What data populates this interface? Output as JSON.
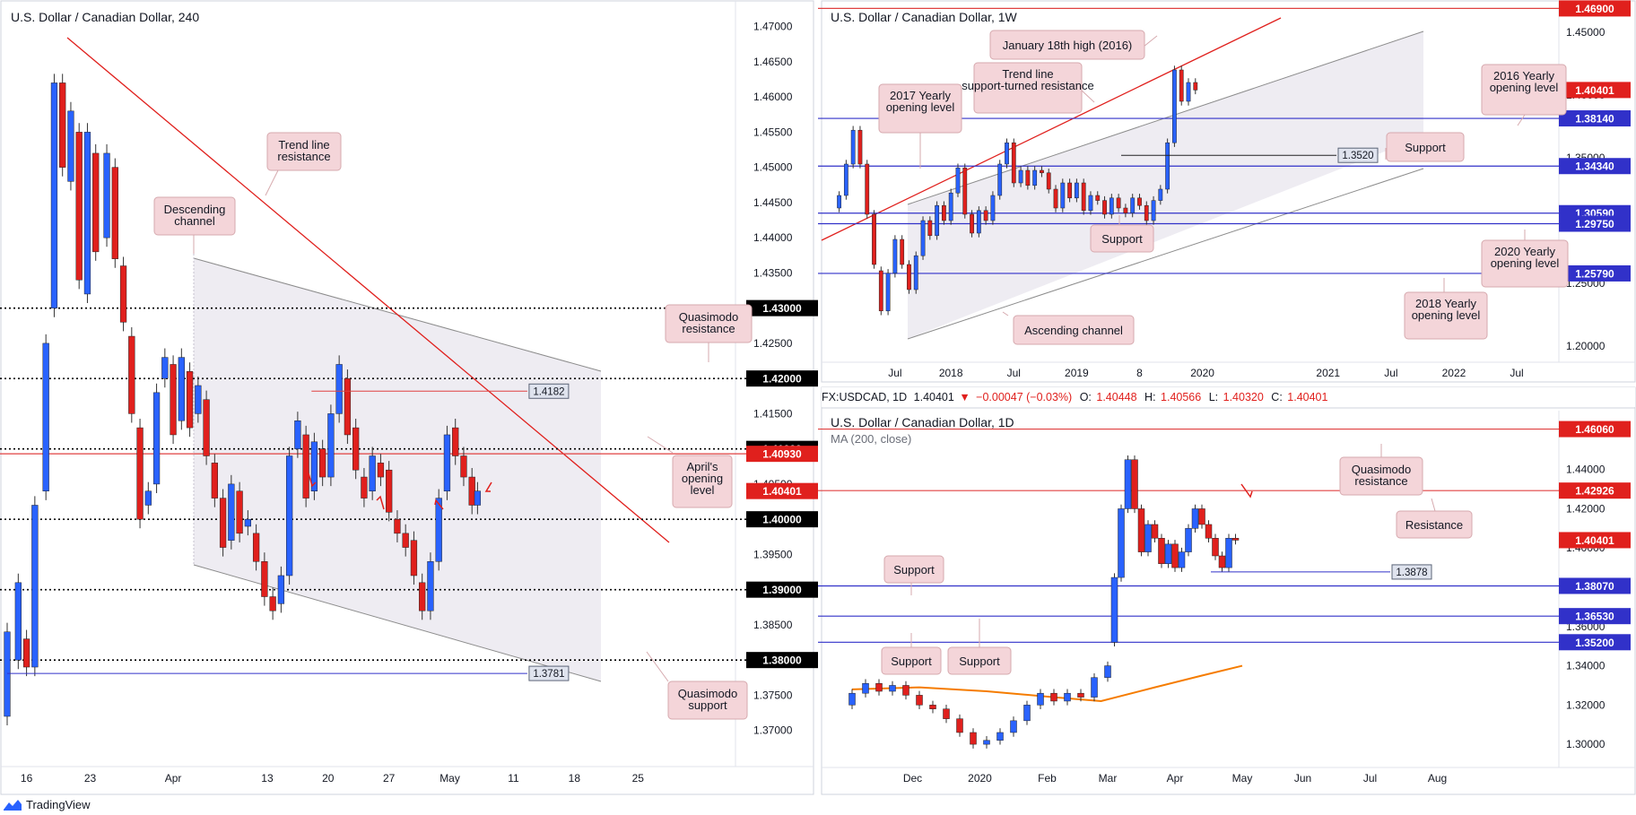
{
  "branding": {
    "name": "TradingView"
  },
  "colors": {
    "bull": "#2962ff",
    "bear": "#e0201d",
    "support": "#3131c9",
    "resistance": "#e04040",
    "ma": "#f57c00",
    "channel": "#8c8c8c",
    "label_red_bg": "#e0201d",
    "label_blue_bg": "#3131c9",
    "callout_bg": "#f4d5d9",
    "callout_border": "#d6a9ae"
  },
  "chart_data": [
    {
      "id": "h4",
      "type": "candlestick",
      "title": "U.S. Dollar / Canadian Dollar, 240",
      "ylim": [
        1.3655,
        1.4725
      ],
      "yticks": [
        "1.47000",
        "1.46500",
        "1.46000",
        "1.45500",
        "1.45000",
        "1.44500",
        "1.44000",
        "1.43500",
        "1.43000",
        "1.42500",
        "1.42000",
        "1.41500",
        "1.41000",
        "1.40500",
        "1.40000",
        "1.39500",
        "1.39000",
        "1.38500",
        "1.38000",
        "1.37500",
        "1.37000"
      ],
      "xlim": [
        0,
        260
      ],
      "xticks": [
        {
          "label": "16",
          "x": 7
        },
        {
          "label": "23",
          "x": 30
        },
        {
          "label": "Apr",
          "x": 60
        },
        {
          "label": "13",
          "x": 94
        },
        {
          "label": "20",
          "x": 116
        },
        {
          "label": "27",
          "x": 138
        },
        {
          "label": "May",
          "x": 160
        },
        {
          "label": "11",
          "x": 183
        },
        {
          "label": "18",
          "x": 205
        },
        {
          "label": "25",
          "x": 228
        }
      ],
      "ohlc_points": [
        [
          0,
          1.372,
          1.384
        ],
        [
          4,
          1.38,
          1.391
        ],
        [
          7,
          1.383,
          1.379
        ],
        [
          10,
          1.379,
          1.402
        ],
        [
          14,
          1.404,
          1.425
        ],
        [
          17,
          1.43,
          1.462
        ],
        [
          20,
          1.462,
          1.45
        ],
        [
          23,
          1.448,
          1.458
        ],
        [
          26,
          1.455,
          1.434
        ],
        [
          29,
          1.432,
          1.455
        ],
        [
          32,
          1.452,
          1.438
        ],
        [
          36,
          1.44,
          1.452
        ],
        [
          39,
          1.45,
          1.437
        ],
        [
          42,
          1.436,
          1.428
        ],
        [
          45,
          1.426,
          1.415
        ],
        [
          48,
          1.413,
          1.4
        ],
        [
          51,
          1.402,
          1.404
        ],
        [
          54,
          1.405,
          1.418
        ],
        [
          57,
          1.42,
          1.423
        ],
        [
          60,
          1.422,
          1.412
        ],
        [
          63,
          1.414,
          1.423
        ],
        [
          66,
          1.421,
          1.413
        ],
        [
          69,
          1.415,
          1.419
        ],
        [
          72,
          1.417,
          1.409
        ],
        [
          75,
          1.408,
          1.403
        ],
        [
          78,
          1.403,
          1.396
        ],
        [
          81,
          1.397,
          1.405
        ],
        [
          84,
          1.404,
          1.398
        ],
        [
          87,
          1.399,
          1.4
        ],
        [
          90,
          1.398,
          1.394
        ],
        [
          93,
          1.394,
          1.389
        ],
        [
          96,
          1.389,
          1.387
        ],
        [
          99,
          1.388,
          1.392
        ],
        [
          102,
          1.392,
          1.409
        ],
        [
          105,
          1.41,
          1.414
        ],
        [
          108,
          1.412,
          1.403
        ],
        [
          111,
          1.404,
          1.411
        ],
        [
          114,
          1.41,
          1.406
        ],
        [
          117,
          1.406,
          1.415
        ],
        [
          120,
          1.415,
          1.422
        ],
        [
          123,
          1.42,
          1.412
        ],
        [
          126,
          1.413,
          1.407
        ],
        [
          129,
          1.406,
          1.403
        ],
        [
          132,
          1.404,
          1.409
        ],
        [
          135,
          1.408,
          1.406
        ],
        [
          138,
          1.407,
          1.401
        ],
        [
          141,
          1.4,
          1.398
        ],
        [
          144,
          1.398,
          1.396
        ],
        [
          147,
          1.397,
          1.392
        ],
        [
          150,
          1.391,
          1.387
        ],
        [
          153,
          1.387,
          1.394
        ],
        [
          156,
          1.394,
          1.403
        ],
        [
          159,
          1.404,
          1.412
        ],
        [
          162,
          1.413,
          1.409
        ],
        [
          165,
          1.409,
          1.406
        ],
        [
          168,
          1.406,
          1.402
        ],
        [
          170,
          1.402,
          1.404
        ]
      ],
      "levels": [
        {
          "label": "1.43000",
          "value": 1.43,
          "style": "dotted",
          "tag": "black"
        },
        {
          "label": "1.42000",
          "value": 1.42,
          "style": "dotted",
          "tag": "black"
        },
        {
          "label": "1.41000",
          "value": 1.41,
          "style": "dotted",
          "tag": "black"
        },
        {
          "label": "1.40930",
          "value": 1.4093,
          "style": "solid",
          "tag": "red"
        },
        {
          "label": "1.40401",
          "value": 1.40401,
          "style": "none",
          "tag": "red"
        },
        {
          "label": "1.40000",
          "value": 1.4,
          "style": "dotted",
          "tag": "black"
        },
        {
          "label": "1.39000",
          "value": 1.39,
          "style": "dotted",
          "tag": "black"
        },
        {
          "label": "1.38000",
          "value": 1.38,
          "style": "dotted",
          "tag": "black"
        }
      ],
      "marker_labels": [
        {
          "label": "1.4182",
          "value": 1.4182,
          "x_from": 110,
          "x_to": 188
        },
        {
          "label": "1.3781",
          "value": 1.3781,
          "x_from": 0,
          "x_to": 188
        }
      ],
      "annotations": [
        "Trend line resistance",
        "Descending channel",
        "Quasimodo resistance",
        "April's opening level",
        "Quasimodo support"
      ]
    },
    {
      "id": "weekly",
      "type": "candlestick",
      "title": "U.S. Dollar / Canadian Dollar, 1W",
      "ylim": [
        1.19,
        1.47
      ],
      "yticks": [
        "1.45000",
        "1.40000",
        "1.35000",
        "1.30000",
        "1.25000",
        "1.20000"
      ],
      "xlim": [
        0,
        100
      ],
      "xticks": [
        {
          "label": "Jul",
          "x": 8
        },
        {
          "label": "2018",
          "x": 16
        },
        {
          "label": "Jul",
          "x": 25
        },
        {
          "label": "2019",
          "x": 34
        },
        {
          "label": "8",
          "x": 43
        },
        {
          "label": "2020",
          "x": 52
        },
        {
          "label": "2021",
          "x": 70
        },
        {
          "label": "Jul",
          "x": 79
        },
        {
          "label": "2022",
          "x": 88
        },
        {
          "label": "Jul",
          "x": 97
        }
      ],
      "ohlc_points": [
        [
          0,
          1.31,
          1.32
        ],
        [
          1,
          1.32,
          1.345
        ],
        [
          2,
          1.345,
          1.372
        ],
        [
          3,
          1.372,
          1.345
        ],
        [
          4,
          1.345,
          1.305
        ],
        [
          5,
          1.305,
          1.265
        ],
        [
          6,
          1.26,
          1.228
        ],
        [
          7,
          1.228,
          1.258
        ],
        [
          8,
          1.258,
          1.285
        ],
        [
          9,
          1.285,
          1.265
        ],
        [
          10,
          1.265,
          1.245
        ],
        [
          11,
          1.245,
          1.272
        ],
        [
          12,
          1.272,
          1.3
        ],
        [
          13,
          1.3,
          1.288
        ],
        [
          14,
          1.288,
          1.312
        ],
        [
          15,
          1.312,
          1.3
        ],
        [
          16,
          1.3,
          1.322
        ],
        [
          17,
          1.322,
          1.342
        ],
        [
          18,
          1.342,
          1.305
        ],
        [
          19,
          1.305,
          1.29
        ],
        [
          20,
          1.29,
          1.308
        ],
        [
          21,
          1.308,
          1.3
        ],
        [
          22,
          1.3,
          1.32
        ],
        [
          23,
          1.32,
          1.345
        ],
        [
          24,
          1.345,
          1.362
        ],
        [
          25,
          1.362,
          1.33
        ],
        [
          26,
          1.33,
          1.34
        ],
        [
          27,
          1.34,
          1.328
        ],
        [
          28,
          1.328,
          1.34
        ],
        [
          29,
          1.34,
          1.338
        ],
        [
          30,
          1.338,
          1.325
        ],
        [
          31,
          1.325,
          1.31
        ],
        [
          32,
          1.31,
          1.33
        ],
        [
          33,
          1.33,
          1.318
        ],
        [
          34,
          1.318,
          1.33
        ],
        [
          35,
          1.33,
          1.308
        ],
        [
          36,
          1.308,
          1.32
        ],
        [
          37,
          1.32,
          1.316
        ],
        [
          38,
          1.316,
          1.305
        ],
        [
          39,
          1.305,
          1.318
        ],
        [
          40,
          1.318,
          1.31
        ],
        [
          41,
          1.31,
          1.306
        ],
        [
          42,
          1.306,
          1.318
        ],
        [
          43,
          1.318,
          1.312
        ],
        [
          44,
          1.312,
          1.3
        ],
        [
          45,
          1.3,
          1.316
        ],
        [
          46,
          1.316,
          1.325
        ],
        [
          47,
          1.325,
          1.362
        ],
        [
          48,
          1.362,
          1.42
        ],
        [
          49,
          1.42,
          1.395
        ],
        [
          50,
          1.395,
          1.41
        ],
        [
          51,
          1.41,
          1.404
        ]
      ],
      "levels": [
        {
          "label": "1.46900",
          "value": 1.469,
          "style": "solid",
          "color": "red"
        },
        {
          "label": "1.40401",
          "value": 1.40401,
          "style": "none",
          "color": "red"
        },
        {
          "label": "1.38140",
          "value": 1.3814,
          "style": "solid",
          "color": "blue"
        },
        {
          "label": "1.34340",
          "value": 1.3434,
          "style": "solid",
          "color": "blue"
        },
        {
          "label": "1.30590",
          "value": 1.3059,
          "style": "solid",
          "color": "blue"
        },
        {
          "label": "1.29750",
          "value": 1.2975,
          "style": "solid",
          "color": "blue"
        },
        {
          "label": "1.25790",
          "value": 1.2579,
          "style": "solid",
          "color": "blue"
        }
      ],
      "marker_labels": [
        {
          "label": "1.3520",
          "value": 1.352
        }
      ],
      "annotations": [
        "January 18th high (2016)",
        "Trend line support-turned resistance",
        "2017 Yearly opening level",
        "2016 Yearly opening level",
        "Support",
        "Support",
        "2020 Yearly opening level",
        "2018 Yearly opening level",
        "Ascending channel"
      ]
    },
    {
      "id": "daily",
      "type": "candlestick",
      "title": "U.S. Dollar / Canadian Dollar, 1D",
      "header": {
        "symbol": "FX:USDCAD, 1D",
        "price": "1.40401",
        "change": "−0.00047 (−0.03%)",
        "o_label": "O:",
        "open": "1.40448",
        "h_label": "H:",
        "high": "1.40566",
        "l_label": "L:",
        "low": "1.40320",
        "c_label": "C:",
        "close": "1.40401"
      },
      "indicator": "MA (200, close)",
      "ylim": [
        1.29,
        1.47
      ],
      "yticks": [
        "1.44000",
        "1.42000",
        "1.40000",
        "1.38000",
        "1.36000",
        "1.34000",
        "1.32000",
        "1.30000"
      ],
      "xlim": [
        0,
        100
      ],
      "xticks": [
        {
          "label": "Dec",
          "x": 9
        },
        {
          "label": "2020",
          "x": 19
        },
        {
          "label": "Feb",
          "x": 29
        },
        {
          "label": "Mar",
          "x": 38
        },
        {
          "label": "Apr",
          "x": 48
        },
        {
          "label": "May",
          "x": 58
        },
        {
          "label": "Jun",
          "x": 67
        },
        {
          "label": "Jul",
          "x": 77
        },
        {
          "label": "Aug",
          "x": 87
        }
      ],
      "ohlc_points": [
        [
          0,
          1.32,
          1.326
        ],
        [
          2,
          1.326,
          1.331
        ],
        [
          4,
          1.331,
          1.327
        ],
        [
          6,
          1.327,
          1.33
        ],
        [
          8,
          1.33,
          1.325
        ],
        [
          10,
          1.325,
          1.32
        ],
        [
          12,
          1.32,
          1.318
        ],
        [
          14,
          1.318,
          1.313
        ],
        [
          16,
          1.313,
          1.306
        ],
        [
          18,
          1.306,
          1.3
        ],
        [
          20,
          1.3,
          1.302
        ],
        [
          22,
          1.302,
          1.306
        ],
        [
          24,
          1.306,
          1.312
        ],
        [
          26,
          1.312,
          1.32
        ],
        [
          28,
          1.32,
          1.326
        ],
        [
          30,
          1.326,
          1.322
        ],
        [
          32,
          1.322,
          1.326
        ],
        [
          34,
          1.326,
          1.324
        ],
        [
          36,
          1.324,
          1.334
        ],
        [
          38,
          1.334,
          1.34
        ],
        [
          39,
          1.352,
          1.385
        ],
        [
          40,
          1.385,
          1.42
        ],
        [
          41,
          1.42,
          1.445
        ],
        [
          42,
          1.445,
          1.42
        ],
        [
          43,
          1.42,
          1.398
        ],
        [
          44,
          1.398,
          1.412
        ],
        [
          45,
          1.412,
          1.405
        ],
        [
          46,
          1.405,
          1.392
        ],
        [
          47,
          1.392,
          1.402
        ],
        [
          48,
          1.402,
          1.39
        ],
        [
          49,
          1.39,
          1.398
        ],
        [
          50,
          1.398,
          1.41
        ],
        [
          51,
          1.41,
          1.42
        ],
        [
          52,
          1.42,
          1.412
        ],
        [
          53,
          1.412,
          1.405
        ],
        [
          54,
          1.405,
          1.396
        ],
        [
          55,
          1.396,
          1.39
        ],
        [
          56,
          1.39,
          1.405
        ],
        [
          57,
          1.405,
          1.404
        ]
      ],
      "ma200": [
        [
          0,
          1.328
        ],
        [
          10,
          1.329
        ],
        [
          20,
          1.327
        ],
        [
          30,
          1.324
        ],
        [
          37,
          1.322
        ],
        [
          45,
          1.329
        ],
        [
          52,
          1.335
        ],
        [
          58,
          1.34
        ]
      ],
      "levels": [
        {
          "label": "1.46060",
          "value": 1.4606,
          "style": "solid",
          "color": "red"
        },
        {
          "label": "1.42926",
          "value": 1.42926,
          "style": "solid",
          "color": "red"
        },
        {
          "label": "1.40401",
          "value": 1.40401,
          "style": "none",
          "color": "red"
        },
        {
          "label": "1.38070",
          "value": 1.3807,
          "style": "solid",
          "color": "blue"
        },
        {
          "label": "1.36530",
          "value": 1.3653,
          "style": "solid",
          "color": "blue"
        },
        {
          "label": "1.35200",
          "value": 1.352,
          "style": "solid",
          "color": "blue"
        }
      ],
      "marker_labels": [
        {
          "label": "1.3878",
          "value": 1.3878
        }
      ],
      "annotations": [
        "Quasimodo resistance",
        "Resistance",
        "Support",
        "Support",
        "Support"
      ]
    }
  ]
}
